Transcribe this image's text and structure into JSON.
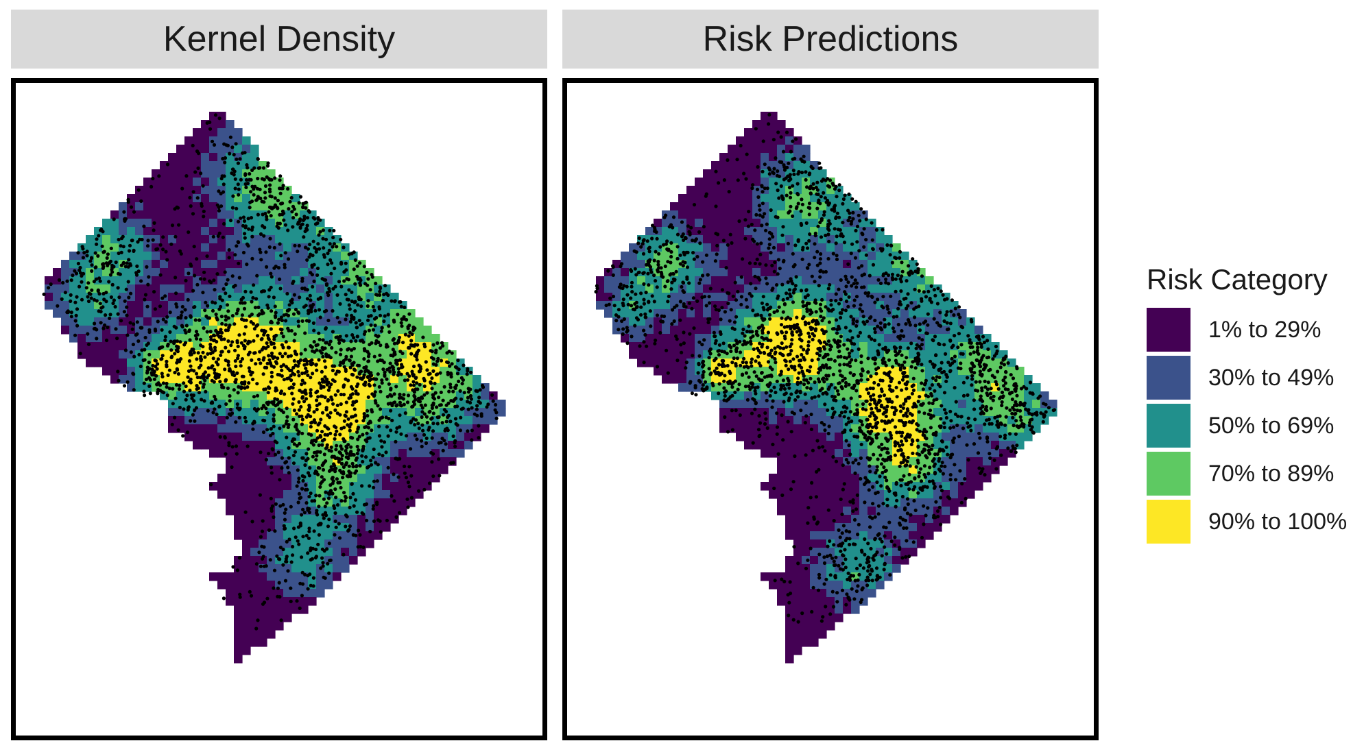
{
  "panels": [
    {
      "title": "Kernel Density"
    },
    {
      "title": "Risk Predictions"
    }
  ],
  "legend": {
    "title": "Risk Category",
    "items": [
      {
        "label": "1% to 29%",
        "color": "#440154"
      },
      {
        "label": "30% to 49%",
        "color": "#3b528b"
      },
      {
        "label": "50% to 69%",
        "color": "#21908c"
      },
      {
        "label": "70% to 89%",
        "color": "#5ec962"
      },
      {
        "label": "90% to 100%",
        "color": "#fde725"
      }
    ]
  },
  "point_color": "#000000"
}
